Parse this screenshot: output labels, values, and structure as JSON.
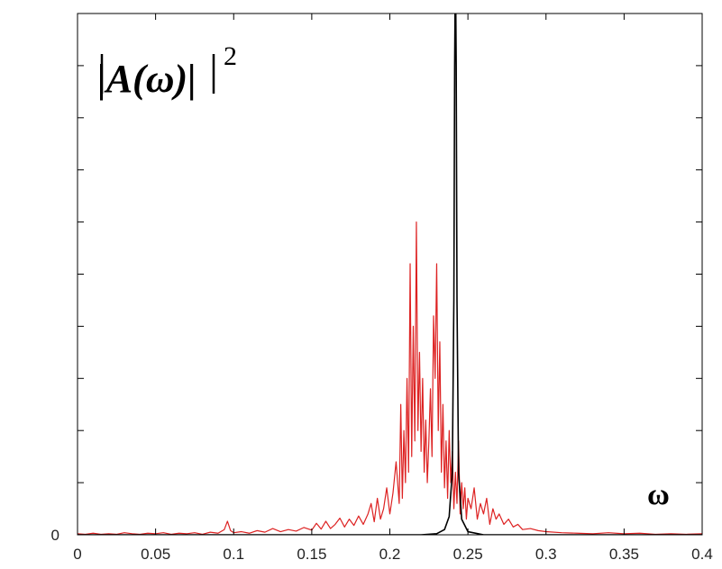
{
  "chart_data": {
    "type": "line",
    "title": "",
    "xlabel": "ω",
    "ylabel": "|A(ω)|",
    "ylabel_superscript": "2",
    "xlim": [
      0,
      0.4
    ],
    "ylim": [
      0,
      1
    ],
    "x_ticks": [
      {
        "value": 0,
        "label": "0"
      },
      {
        "value": 0.05,
        "label": "0.05"
      },
      {
        "value": 0.1,
        "label": "0.1"
      },
      {
        "value": 0.15,
        "label": "0.15"
      },
      {
        "value": 0.2,
        "label": "0.2"
      },
      {
        "value": 0.25,
        "label": "0.25"
      },
      {
        "value": 0.3,
        "label": "0.3"
      },
      {
        "value": 0.35,
        "label": "0.35"
      },
      {
        "value": 0.4,
        "label": "0.4"
      }
    ],
    "y_ticks": [
      {
        "value": 0,
        "label": "0"
      },
      {
        "value": 0.1,
        "label": ""
      },
      {
        "value": 0.2,
        "label": ""
      },
      {
        "value": 0.3,
        "label": ""
      },
      {
        "value": 0.4,
        "label": ""
      },
      {
        "value": 0.5,
        "label": ""
      },
      {
        "value": 0.6,
        "label": ""
      },
      {
        "value": 0.7,
        "label": ""
      },
      {
        "value": 0.8,
        "label": ""
      },
      {
        "value": 0.9,
        "label": ""
      }
    ],
    "grid": false,
    "legend": "none",
    "series": [
      {
        "color": "#dd2222",
        "x": [
          0,
          0.005,
          0.01,
          0.015,
          0.02,
          0.025,
          0.03,
          0.035,
          0.04,
          0.045,
          0.05,
          0.055,
          0.06,
          0.065,
          0.07,
          0.075,
          0.08,
          0.085,
          0.09,
          0.094,
          0.096,
          0.098,
          0.1,
          0.105,
          0.11,
          0.115,
          0.12,
          0.125,
          0.13,
          0.135,
          0.14,
          0.145,
          0.15,
          0.153,
          0.156,
          0.159,
          0.162,
          0.165,
          0.168,
          0.171,
          0.174,
          0.177,
          0.18,
          0.183,
          0.186,
          0.188,
          0.19,
          0.192,
          0.194,
          0.196,
          0.198,
          0.2,
          0.202,
          0.204,
          0.206,
          0.207,
          0.208,
          0.209,
          0.21,
          0.211,
          0.212,
          0.213,
          0.214,
          0.215,
          0.216,
          0.217,
          0.218,
          0.219,
          0.22,
          0.221,
          0.222,
          0.223,
          0.224,
          0.225,
          0.226,
          0.227,
          0.228,
          0.229,
          0.23,
          0.231,
          0.232,
          0.233,
          0.234,
          0.235,
          0.236,
          0.237,
          0.238,
          0.239,
          0.24,
          0.241,
          0.242,
          0.243,
          0.244,
          0.245,
          0.246,
          0.247,
          0.248,
          0.249,
          0.25,
          0.252,
          0.254,
          0.256,
          0.258,
          0.26,
          0.262,
          0.264,
          0.266,
          0.268,
          0.27,
          0.273,
          0.276,
          0.279,
          0.282,
          0.285,
          0.29,
          0.295,
          0.3,
          0.31,
          0.32,
          0.33,
          0.34,
          0.35,
          0.36,
          0.37,
          0.38,
          0.39,
          0.4
        ],
        "values": [
          0.002,
          0.001,
          0.003,
          0.001,
          0.002,
          0.001,
          0.004,
          0.002,
          0.001,
          0.003,
          0.002,
          0.004,
          0.001,
          0.003,
          0.002,
          0.004,
          0.001,
          0.005,
          0.003,
          0.01,
          0.026,
          0.008,
          0.004,
          0.006,
          0.003,
          0.008,
          0.005,
          0.012,
          0.006,
          0.01,
          0.007,
          0.014,
          0.009,
          0.022,
          0.011,
          0.026,
          0.012,
          0.02,
          0.032,
          0.015,
          0.03,
          0.018,
          0.036,
          0.02,
          0.04,
          0.06,
          0.025,
          0.07,
          0.03,
          0.05,
          0.09,
          0.04,
          0.08,
          0.14,
          0.06,
          0.25,
          0.07,
          0.2,
          0.1,
          0.3,
          0.12,
          0.52,
          0.15,
          0.4,
          0.18,
          0.6,
          0.2,
          0.35,
          0.16,
          0.3,
          0.12,
          0.22,
          0.1,
          0.18,
          0.28,
          0.15,
          0.42,
          0.3,
          0.52,
          0.2,
          0.37,
          0.12,
          0.25,
          0.09,
          0.18,
          0.07,
          0.2,
          0.1,
          0.16,
          0.05,
          0.12,
          0.06,
          0.18,
          0.04,
          0.1,
          0.05,
          0.09,
          0.03,
          0.07,
          0.05,
          0.09,
          0.03,
          0.06,
          0.04,
          0.07,
          0.02,
          0.05,
          0.03,
          0.04,
          0.02,
          0.03,
          0.015,
          0.02,
          0.01,
          0.012,
          0.008,
          0.006,
          0.004,
          0.003,
          0.002,
          0.004,
          0.002,
          0.003,
          0.001,
          0.002,
          0.001,
          0.002
        ]
      },
      {
        "color": "#000000",
        "x": [
          0,
          0.22,
          0.23,
          0.235,
          0.238,
          0.24,
          0.241,
          0.2415,
          0.242,
          0.2425,
          0.243,
          0.244,
          0.246,
          0.25,
          0.26,
          0.4
        ],
        "values": [
          0,
          0,
          0.002,
          0.01,
          0.035,
          0.12,
          0.45,
          0.9,
          1.1,
          0.9,
          0.45,
          0.12,
          0.03,
          0.006,
          0,
          0
        ]
      }
    ]
  }
}
